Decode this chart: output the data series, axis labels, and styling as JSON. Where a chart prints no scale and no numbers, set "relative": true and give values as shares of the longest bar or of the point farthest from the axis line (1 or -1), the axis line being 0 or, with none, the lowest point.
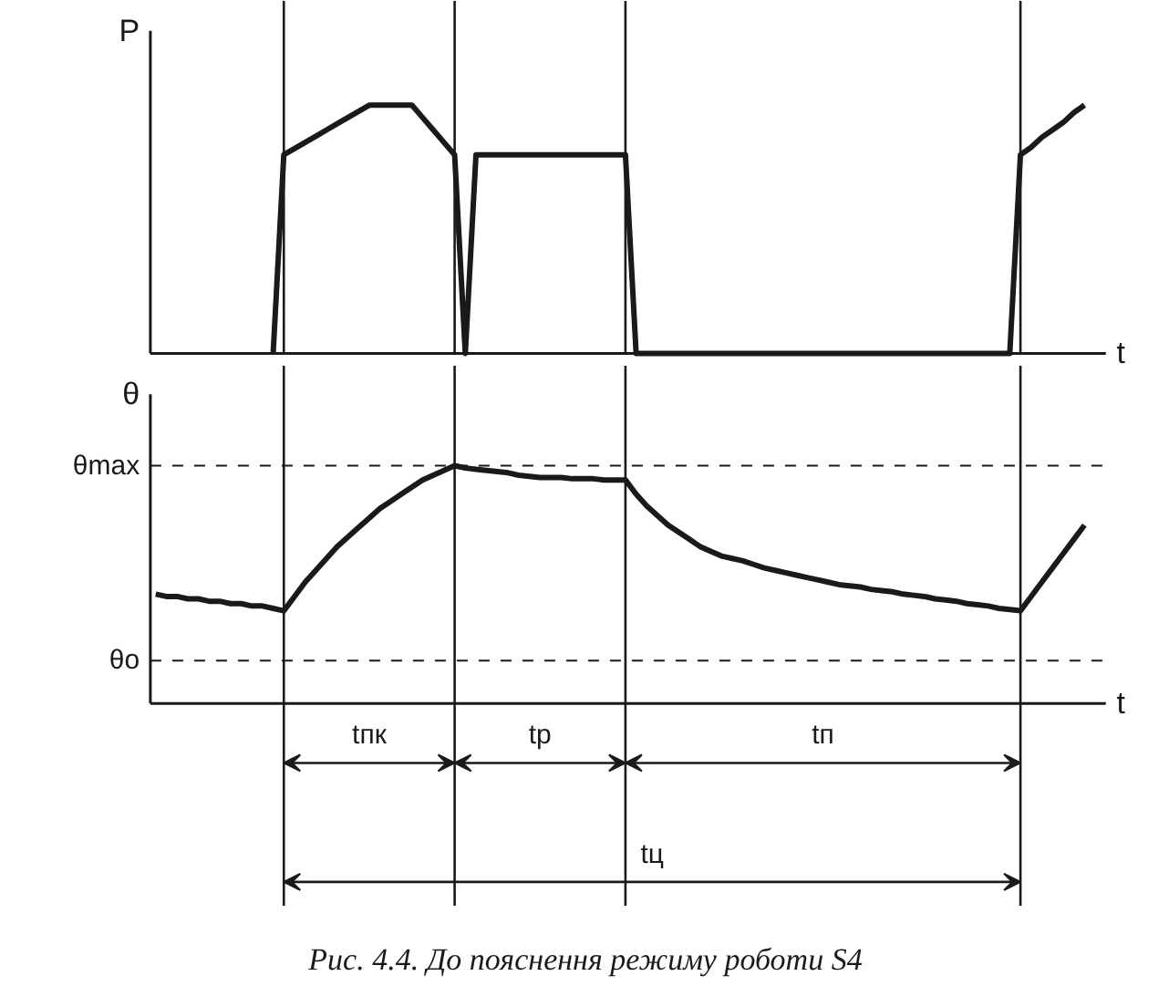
{
  "chart_data": [
    {
      "type": "line",
      "relative": true,
      "ylabel": "P",
      "xlabel": "t",
      "grid": "x",
      "line_style": "solid",
      "marker": "none",
      "categories": [
        null,
        null,
        null,
        null,
        null,
        null,
        null,
        null,
        null,
        null,
        null,
        null,
        null,
        null,
        null,
        null,
        null,
        null,
        null,
        null,
        null,
        null,
        null,
        null,
        null,
        null,
        null,
        null,
        null,
        null,
        null,
        null,
        null,
        null,
        null,
        null,
        null,
        null,
        null,
        null,
        null,
        null,
        null,
        null,
        null,
        null,
        null,
        null,
        null,
        null,
        null,
        null,
        null,
        null,
        null,
        null,
        null,
        null,
        null,
        null,
        null,
        null,
        null,
        null,
        null,
        null,
        null,
        null,
        null,
        null,
        null,
        null,
        null,
        null,
        null,
        null,
        null,
        null,
        null,
        null,
        null,
        null,
        null,
        null,
        null,
        null,
        null,
        null
      ],
      "series": [
        {
          "color": "#1a1a1a",
          "values": [
            null,
            null,
            null,
            null,
            null,
            null,
            null,
            null,
            null,
            null,
            null,
            0,
            0.8,
            0.825,
            0.85,
            0.875,
            0.9,
            0.925,
            0.95,
            0.975,
            1,
            1,
            1,
            1,
            1,
            0.95,
            0.9,
            0.85,
            0.8,
            0,
            0.8,
            0.8,
            0.8,
            0.8,
            0.8,
            0.8,
            0.8,
            0.8,
            0.8,
            0.8,
            0.8,
            0.8,
            0.8,
            0.8,
            0.8,
            0,
            0,
            0,
            0,
            0,
            0,
            0,
            0,
            0,
            0,
            0,
            0,
            0,
            0,
            0,
            0,
            0,
            0,
            0,
            0,
            0,
            0,
            0,
            0,
            0,
            0,
            0,
            0,
            0,
            0,
            0,
            0,
            0,
            0,
            0,
            0,
            0.8,
            0.83,
            0.87,
            0.9,
            0.93,
            0.97,
            1
          ]
        }
      ]
    },
    {
      "type": "line",
      "relative": true,
      "ylabel": "θ",
      "xlabel": "t",
      "grid": "x",
      "line_style": "solid",
      "marker": "none",
      "categories": [
        null,
        null,
        null,
        null,
        null,
        null,
        null,
        null,
        null,
        null,
        null,
        null,
        null,
        null,
        null,
        null,
        null,
        null,
        null,
        null,
        null,
        null,
        null,
        null,
        null,
        null,
        null,
        null,
        null,
        null,
        null,
        null,
        null,
        null,
        null,
        null,
        null,
        null,
        null,
        null,
        null,
        null,
        null,
        null,
        null,
        null,
        null,
        null,
        null,
        null,
        null,
        null,
        null,
        null,
        null,
        null,
        null,
        null,
        null,
        null,
        null,
        null,
        null,
        null,
        null,
        null,
        null,
        null,
        null,
        null,
        null,
        null,
        null,
        null,
        null,
        null,
        null,
        null,
        null,
        null,
        null,
        null,
        null,
        null,
        null,
        null,
        null,
        null
      ],
      "series": [
        {
          "color": "#1a1a1a",
          "values": [
            0.46,
            0.45,
            0.45,
            0.44,
            0.44,
            0.43,
            0.43,
            0.42,
            0.42,
            0.41,
            0.41,
            0.4,
            0.39,
            0.45,
            0.51,
            0.56,
            0.61,
            0.66,
            0.7,
            0.74,
            0.78,
            0.82,
            0.85,
            0.88,
            0.91,
            0.94,
            0.96,
            0.98,
            1.0,
            0.99,
            0.985,
            0.98,
            0.975,
            0.97,
            0.96,
            0.955,
            0.95,
            0.95,
            0.95,
            0.945,
            0.945,
            0.945,
            0.94,
            0.94,
            0.94,
            0.88,
            0.83,
            0.79,
            0.75,
            0.72,
            0.69,
            0.66,
            0.64,
            0.62,
            0.61,
            0.6,
            0.585,
            0.57,
            0.56,
            0.55,
            0.54,
            0.53,
            0.52,
            0.51,
            0.5,
            0.495,
            0.49,
            0.48,
            0.475,
            0.47,
            0.46,
            0.455,
            0.45,
            0.44,
            0.435,
            0.43,
            0.42,
            0.415,
            0.41,
            0.4,
            0.395,
            0.39,
            0.45,
            0.51,
            0.57,
            0.63,
            0.69,
            0.75
          ]
        }
      ],
      "ref_lines": [
        {
          "axis": "y",
          "value": 1.0,
          "label": "θmax",
          "line_style": "dashed"
        },
        {
          "axis": "y",
          "value": 0.18,
          "label": "θo",
          "line_style": "dashed"
        }
      ],
      "annotations": [
        "tпк",
        "tр",
        "tп",
        "tц",
        "Рис. 4.4. До пояснення режиму роботи S4"
      ]
    }
  ]
}
